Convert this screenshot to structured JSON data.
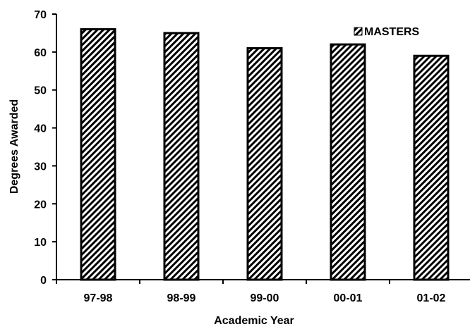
{
  "chart_data": {
    "type": "bar",
    "title": "",
    "xlabel": "Academic Year",
    "ylabel": "Degrees Awarded",
    "categories": [
      "97-98",
      "98-99",
      "99-00",
      "00-01",
      "01-02"
    ],
    "series": [
      {
        "name": "MASTERS",
        "values": [
          66,
          65,
          61,
          62,
          59
        ]
      }
    ],
    "ylim": [
      0,
      70
    ],
    "yticks": [
      "0",
      "10",
      "20",
      "30",
      "40",
      "50",
      "60",
      "70"
    ],
    "grid": false,
    "legend_position": "top-right",
    "bar_pattern": "diagonal-hatch",
    "colors": {
      "bar_stroke": "#000000",
      "hatch": "#000000",
      "background": "#ffffff"
    }
  }
}
